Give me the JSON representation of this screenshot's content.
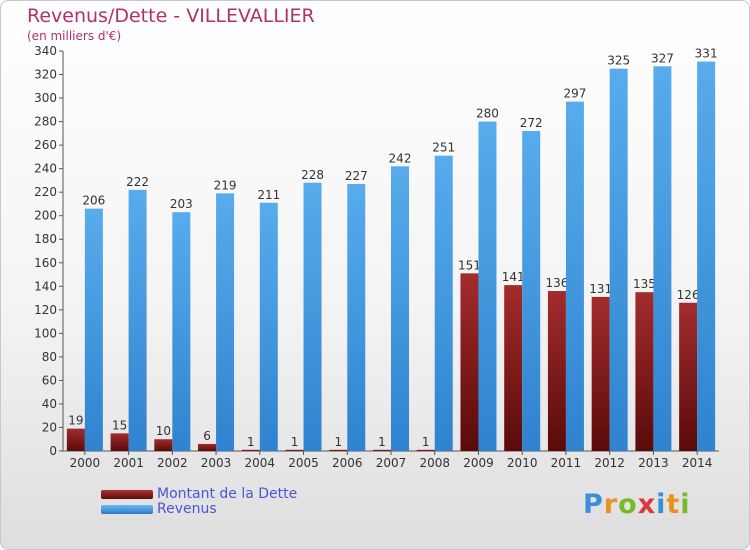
{
  "header": {
    "title": "Revenus/Dette - VILLEVALLIER",
    "subtitle": "(en milliers d'€)"
  },
  "chart_data": {
    "type": "bar",
    "categories": [
      "2000",
      "2001",
      "2002",
      "2003",
      "2004",
      "2005",
      "2006",
      "2007",
      "2008",
      "2009",
      "2010",
      "2011",
      "2012",
      "2013",
      "2014"
    ],
    "series": [
      {
        "name": "Montant de la Dette",
        "color": "#7a1515",
        "values": [
          19,
          15,
          10,
          6,
          1,
          1,
          1,
          1,
          1,
          151,
          141,
          136,
          131,
          135,
          126
        ]
      },
      {
        "name": "Revenus",
        "color": "#3f9ae0",
        "values": [
          206,
          222,
          203,
          219,
          211,
          228,
          227,
          242,
          251,
          280,
          272,
          297,
          325,
          327,
          331
        ]
      }
    ],
    "ylim": [
      0,
      340
    ],
    "yticks": [
      0,
      20,
      40,
      60,
      80,
      100,
      120,
      140,
      160,
      180,
      200,
      220,
      240,
      260,
      280,
      300,
      320,
      340
    ],
    "grid": false,
    "legend_position": "bottom-left"
  },
  "legend": {
    "items": [
      {
        "label": "Montant de la Dette",
        "color": "#7a1515"
      },
      {
        "label": "Revenus",
        "color": "#3f9ae0"
      }
    ]
  },
  "logo": {
    "letters": [
      "P",
      "r",
      "o",
      "x",
      "i",
      "t",
      "i"
    ],
    "colors": [
      "#3a8fd8",
      "#e8931f",
      "#79b929",
      "#d83a3a",
      "#3a8fd8",
      "#e8931f",
      "#79b929"
    ]
  }
}
